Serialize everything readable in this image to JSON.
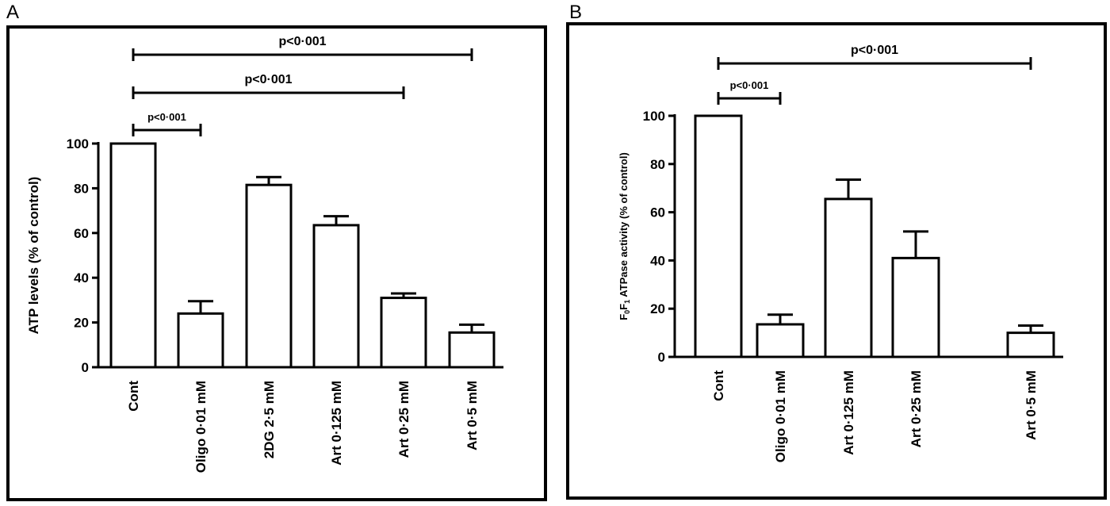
{
  "panels": [
    {
      "letter": "A",
      "chart_data": {
        "type": "bar",
        "title": "",
        "xlabel": "",
        "ylabel": "ATP levels (% of control)",
        "categories": [
          "Cont",
          "Oligo 0·01 mM",
          "2DG 2·5 mM",
          "Art 0·125 mM",
          "Art 0·25 mM",
          "Art 0·5 mM"
        ],
        "values": [
          100,
          24,
          81.5,
          63.5,
          31,
          15.5
        ],
        "errors": [
          0,
          5.5,
          3.5,
          4,
          2,
          3.5
        ],
        "ylim": [
          0,
          100
        ],
        "yticks": [
          "0",
          "20",
          "40",
          "60",
          "80",
          "100"
        ],
        "grid": false,
        "bar_fill": "#ffffff",
        "bar_stroke": "#000000",
        "significance": [
          {
            "from": 0,
            "to": 1,
            "label": "p<0·001"
          },
          {
            "from": 0,
            "to": 4,
            "label": "p<0·001"
          },
          {
            "from": 0,
            "to": 5,
            "label": "p<0·001"
          }
        ]
      }
    },
    {
      "letter": "B",
      "chart_data": {
        "type": "bar",
        "title": "",
        "xlabel": "",
        "ylabel_parts": [
          "F",
          "0",
          "F",
          "1",
          " ATPase activity (% of control)"
        ],
        "categories": [
          "Cont",
          "Oligo 0·01 mM",
          "Art 0·125 mM",
          "Art 0·25 mM",
          "Art 0·5 mM"
        ],
        "values": [
          100,
          13.5,
          65.5,
          41,
          10
        ],
        "errors": [
          0,
          4,
          8,
          11,
          3
        ],
        "ylim": [
          0,
          100
        ],
        "yticks": [
          "0",
          "20",
          "40",
          "60",
          "80",
          "100"
        ],
        "grid": false,
        "bar_fill": "#ffffff",
        "bar_stroke": "#000000",
        "significance": [
          {
            "from": 0,
            "to": 1,
            "label": "p<0·001"
          },
          {
            "from": 0,
            "to": 4,
            "label": "p<0·001"
          }
        ]
      }
    }
  ]
}
